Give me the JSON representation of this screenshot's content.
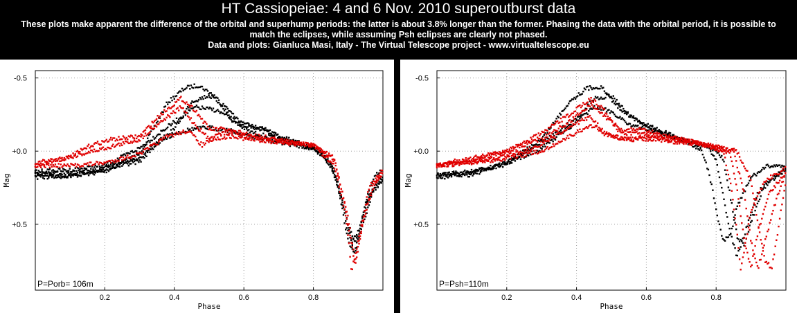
{
  "header": {
    "title": "HT Cassiopeiae: 4 and 6 Nov. 2010 superoutburst data",
    "line1": "These plots make apparent the difference of the orbital and superhump periods: the latter is about 3.8% longer than the former. Phasing the data with the orbital period, it is possible to",
    "line2": "match the eclipses, while assuming Psh eclipses are clearly not phased.",
    "line3": "Data and plots: Gianluca Masi, Italy - The Virtual Telescope project - www.virtualtelescope.eu"
  },
  "colors": {
    "night1": "#000000",
    "night2": "#e00000",
    "background": "#ffffff"
  },
  "chart_data": [
    {
      "type": "scatter",
      "xlabel": "Phase",
      "ylabel": "Mag",
      "label": "P=Porb= 106m",
      "xlim": [
        0.0,
        1.0
      ],
      "ylim": [
        -0.55,
        0.95
      ],
      "y_inverted": true,
      "xticks": [
        "0.2",
        "0.4",
        "0.6",
        "0.8"
      ],
      "xtick_values": [
        0.2,
        0.4,
        0.6,
        0.8
      ],
      "yticks": [
        "-0.5",
        "+0.0",
        "+0.5"
      ],
      "ytick_values": [
        -0.5,
        0.0,
        0.5
      ],
      "series": [
        {
          "color": "#000000",
          "curves": [
            {
              "x": [
                0.0,
                0.1,
                0.2,
                0.3,
                0.38,
                0.43,
                0.47,
                0.52,
                0.57,
                0.62,
                0.7,
                0.78,
                0.82,
                0.86,
                0.88,
                0.9,
                0.92,
                0.94,
                0.96,
                0.98,
                1.0
              ],
              "y": [
                0.16,
                0.17,
                0.14,
                0.02,
                -0.33,
                -0.43,
                -0.45,
                -0.37,
                -0.2,
                -0.13,
                -0.08,
                -0.03,
                0.0,
                0.12,
                0.35,
                0.62,
                0.69,
                0.45,
                0.26,
                0.16,
                0.12
              ]
            },
            {
              "x": [
                0.0,
                0.1,
                0.2,
                0.3,
                0.4,
                0.45,
                0.5,
                0.55,
                0.6,
                0.66,
                0.72,
                0.8,
                0.84,
                0.87,
                0.9,
                0.92,
                0.94,
                0.97,
                1.0
              ],
              "y": [
                0.18,
                0.17,
                0.12,
                0.04,
                -0.15,
                -0.34,
                -0.38,
                -0.3,
                -0.17,
                -0.15,
                -0.08,
                -0.02,
                0.04,
                0.22,
                0.5,
                0.63,
                0.52,
                0.28,
                0.2
              ]
            },
            {
              "x": [
                0.0,
                0.1,
                0.2,
                0.3,
                0.4,
                0.46,
                0.52,
                0.58,
                0.64,
                0.7,
                0.78,
                0.83,
                0.87,
                0.9,
                0.92,
                0.95,
                0.98,
                1.0
              ],
              "y": [
                0.14,
                0.13,
                0.1,
                -0.02,
                -0.2,
                -0.3,
                -0.28,
                -0.2,
                -0.16,
                -0.1,
                -0.04,
                0.03,
                0.2,
                0.56,
                0.7,
                0.38,
                0.22,
                0.18
              ]
            },
            {
              "x": [
                0.0,
                0.1,
                0.2,
                0.3,
                0.35,
                0.4,
                0.45,
                0.5,
                0.56,
                0.62,
                0.7,
                0.8,
                0.85,
                0.89,
                0.91,
                0.93,
                0.96,
                1.0
              ],
              "y": [
                0.15,
                0.15,
                0.12,
                0.07,
                -0.05,
                -0.12,
                -0.15,
                -0.16,
                -0.14,
                -0.1,
                -0.06,
                -0.02,
                0.08,
                0.4,
                0.62,
                0.55,
                0.3,
                0.2
              ]
            }
          ]
        },
        {
          "color": "#e00000",
          "curves": [
            {
              "x": [
                0.0,
                0.1,
                0.16,
                0.22,
                0.3,
                0.36,
                0.42,
                0.46,
                0.5,
                0.55,
                0.6,
                0.7,
                0.8,
                0.86,
                0.89,
                0.91,
                0.93,
                0.96,
                1.0
              ],
              "y": [
                0.1,
                0.04,
                -0.04,
                -0.08,
                -0.1,
                -0.25,
                -0.36,
                -0.28,
                -0.15,
                -0.15,
                -0.1,
                -0.07,
                -0.04,
                0.05,
                0.35,
                0.82,
                0.6,
                0.25,
                0.13
              ]
            },
            {
              "x": [
                0.0,
                0.1,
                0.2,
                0.3,
                0.36,
                0.42,
                0.46,
                0.5,
                0.56,
                0.62,
                0.7,
                0.8,
                0.86,
                0.9,
                0.92,
                0.95,
                0.98,
                1.0
              ],
              "y": [
                0.08,
                0.04,
                -0.02,
                -0.08,
                -0.2,
                -0.3,
                -0.18,
                -0.08,
                -0.1,
                -0.08,
                -0.06,
                -0.04,
                0.1,
                0.5,
                0.78,
                0.4,
                0.2,
                0.14
              ]
            },
            {
              "x": [
                0.0,
                0.1,
                0.2,
                0.3,
                0.38,
                0.44,
                0.48,
                0.53,
                0.58,
                0.65,
                0.72,
                0.8,
                0.86,
                0.9,
                0.92,
                0.94,
                0.97,
                1.0
              ],
              "y": [
                0.1,
                0.1,
                0.08,
                0.02,
                -0.1,
                -0.14,
                -0.04,
                -0.12,
                -0.13,
                -0.1,
                -0.07,
                -0.04,
                0.06,
                0.45,
                0.76,
                0.52,
                0.24,
                0.16
              ]
            }
          ]
        }
      ]
    },
    {
      "type": "scatter",
      "xlabel": "Phase",
      "ylabel": "Mag",
      "label": "P=Psh=110m",
      "xlim": [
        0.0,
        1.0
      ],
      "ylim": [
        -0.55,
        0.95
      ],
      "y_inverted": true,
      "xticks": [
        "0.2",
        "0.4",
        "0.6",
        "0.8"
      ],
      "xtick_values": [
        0.2,
        0.4,
        0.6,
        0.8
      ],
      "yticks": [
        "-0.5",
        "+0.0",
        "+0.5"
      ],
      "ytick_values": [
        -0.5,
        0.0,
        0.5
      ],
      "series": [
        {
          "color": "#000000",
          "curves": [
            {
              "x": [
                0.0,
                0.1,
                0.2,
                0.3,
                0.38,
                0.43,
                0.47,
                0.52,
                0.58,
                0.65,
                0.72,
                0.76,
                0.78,
                0.8,
                0.82,
                0.84,
                0.86,
                0.9,
                0.95,
                1.0
              ],
              "y": [
                0.18,
                0.16,
                0.08,
                -0.08,
                -0.34,
                -0.43,
                -0.44,
                -0.3,
                -0.2,
                -0.12,
                -0.06,
                0.0,
                0.15,
                0.4,
                0.62,
                0.58,
                0.38,
                0.18,
                0.1,
                0.1
              ]
            },
            {
              "x": [
                0.0,
                0.1,
                0.2,
                0.3,
                0.4,
                0.45,
                0.5,
                0.56,
                0.62,
                0.7,
                0.78,
                0.8,
                0.82,
                0.84,
                0.86,
                0.88,
                0.92,
                1.0
              ],
              "y": [
                0.17,
                0.15,
                0.08,
                -0.06,
                -0.22,
                -0.36,
                -0.38,
                -0.22,
                -0.16,
                -0.08,
                -0.02,
                0.06,
                0.3,
                0.55,
                0.72,
                0.58,
                0.28,
                0.12
              ]
            },
            {
              "x": [
                0.0,
                0.1,
                0.2,
                0.3,
                0.4,
                0.45,
                0.5,
                0.56,
                0.62,
                0.7,
                0.78,
                0.82,
                0.84,
                0.86,
                0.88,
                0.9,
                0.94,
                1.0
              ],
              "y": [
                0.16,
                0.14,
                0.09,
                -0.02,
                -0.2,
                -0.3,
                -0.27,
                -0.17,
                -0.14,
                -0.08,
                -0.03,
                0.05,
                0.3,
                0.58,
                0.65,
                0.48,
                0.22,
                0.12
              ]
            }
          ]
        },
        {
          "color": "#e00000",
          "curves": [
            {
              "x": [
                0.0,
                0.1,
                0.2,
                0.3,
                0.38,
                0.44,
                0.48,
                0.52,
                0.58,
                0.66,
                0.74,
                0.82,
                0.84,
                0.86,
                0.87,
                0.88,
                0.9,
                0.94,
                1.0
              ],
              "y": [
                0.1,
                0.06,
                0.0,
                -0.12,
                -0.25,
                -0.36,
                -0.28,
                -0.14,
                -0.15,
                -0.1,
                -0.06,
                0.0,
                0.2,
                0.55,
                0.82,
                0.7,
                0.4,
                0.2,
                0.12
              ]
            },
            {
              "x": [
                0.0,
                0.1,
                0.2,
                0.3,
                0.38,
                0.44,
                0.48,
                0.54,
                0.6,
                0.68,
                0.76,
                0.84,
                0.86,
                0.88,
                0.9,
                0.92,
                0.95,
                1.0
              ],
              "y": [
                0.09,
                0.05,
                0.0,
                -0.08,
                -0.2,
                -0.32,
                -0.24,
                -0.12,
                -0.12,
                -0.09,
                -0.05,
                0.02,
                0.25,
                0.6,
                0.8,
                0.55,
                0.3,
                0.14
              ]
            },
            {
              "x": [
                0.0,
                0.1,
                0.2,
                0.3,
                0.38,
                0.44,
                0.48,
                0.54,
                0.6,
                0.68,
                0.76,
                0.85,
                0.88,
                0.9,
                0.92,
                0.94,
                0.97,
                1.0
              ],
              "y": [
                0.1,
                0.08,
                0.03,
                -0.04,
                -0.16,
                -0.24,
                -0.12,
                -0.08,
                -0.1,
                -0.08,
                -0.05,
                0.0,
                0.28,
                0.62,
                0.8,
                0.62,
                0.35,
                0.14
              ]
            },
            {
              "x": [
                0.0,
                0.1,
                0.2,
                0.3,
                0.38,
                0.44,
                0.5,
                0.56,
                0.62,
                0.7,
                0.78,
                0.86,
                0.9,
                0.92,
                0.94,
                0.96,
                0.98,
                1.0
              ],
              "y": [
                0.1,
                0.08,
                0.05,
                0.0,
                -0.1,
                -0.18,
                -0.1,
                -0.08,
                -0.08,
                -0.06,
                -0.04,
                0.0,
                0.2,
                0.5,
                0.75,
                0.8,
                0.5,
                0.2
              ]
            }
          ]
        }
      ]
    }
  ]
}
